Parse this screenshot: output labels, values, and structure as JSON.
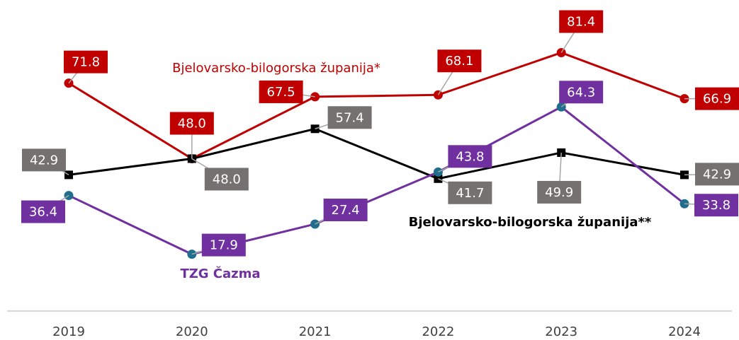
{
  "chart_data": {
    "type": "line",
    "categories": [
      "2019",
      "2020",
      "2021",
      "2022",
      "2023",
      "2024"
    ],
    "ylim": [
      0,
      100
    ],
    "series": [
      {
        "name": "Bjelovarsko-bilogorska županija*",
        "color": "#c00000",
        "marker_color": "#c00000",
        "label_color": "#c00000",
        "values": [
          71.8,
          48.0,
          67.5,
          68.1,
          81.4,
          66.9
        ],
        "value_labels": [
          "71.8",
          "48.0",
          "67.5",
          "68.1",
          "81.4",
          "66.9"
        ]
      },
      {
        "name": "Bjelovarsko-bilogorska županija**",
        "color": "#000000",
        "marker_color": "#000000",
        "label_color": "#767171",
        "values": [
          42.9,
          48.0,
          57.4,
          41.7,
          49.9,
          42.9
        ],
        "value_labels": [
          "42.9",
          "48.0",
          "57.4",
          "41.7",
          "49.9",
          "42.9"
        ]
      },
      {
        "name": "TZG Čazma",
        "color": "#7030a0",
        "marker_color": "#1f6e8c",
        "label_color": "#7030a0",
        "values": [
          36.4,
          17.9,
          27.4,
          43.8,
          64.3,
          33.8
        ],
        "value_labels": [
          "36.4",
          "17.9",
          "27.4",
          "43.8",
          "64.3",
          "33.8"
        ]
      }
    ]
  }
}
